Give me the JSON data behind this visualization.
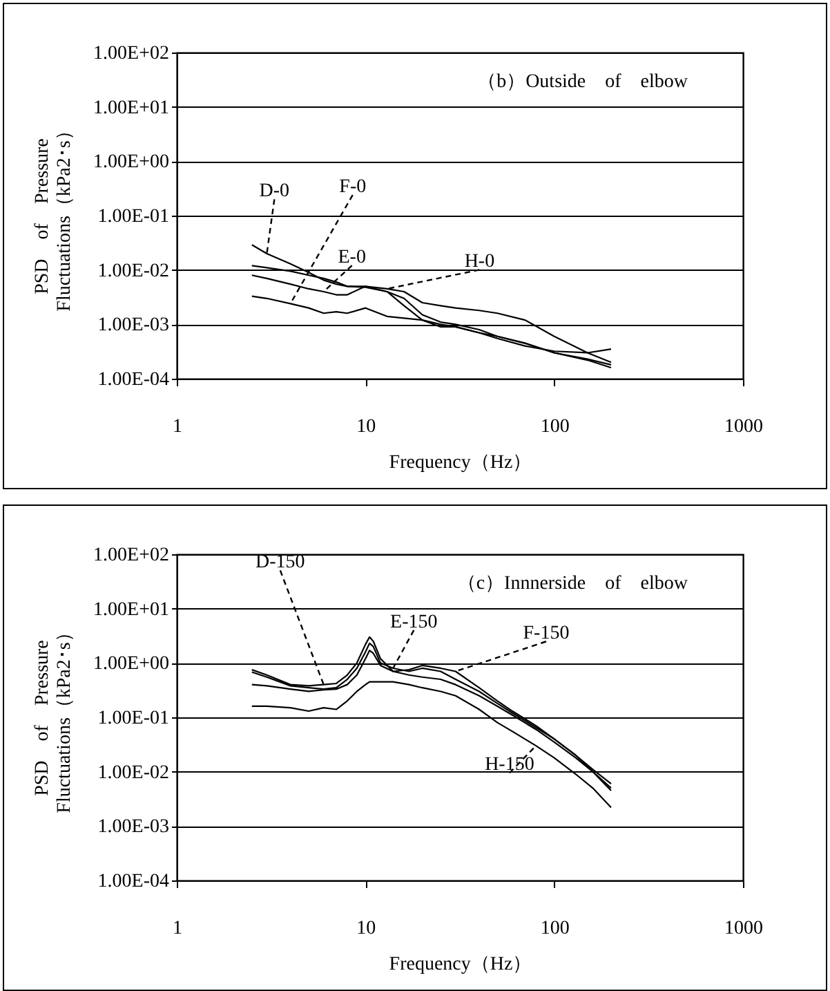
{
  "chart_data": [
    {
      "type": "line",
      "title": "（b）Outside　of　elbow",
      "xlabel": "Frequency（Hz）",
      "ylabel": "PSD　of　Pressure\nFluctuations（kPa2･s）",
      "log": "xy",
      "grid": "y",
      "legend": false,
      "x": [
        2.5,
        3,
        4,
        5,
        6,
        7,
        8,
        10,
        13,
        16,
        20,
        25,
        30,
        40,
        50,
        70,
        100,
        150,
        200
      ],
      "series": [
        {
          "name": "D-0",
          "color": "#000000",
          "values": [
            0.029,
            0.02,
            0.013,
            0.009,
            0.0065,
            0.0055,
            0.005,
            0.0048,
            0.004,
            0.003,
            0.0015,
            0.0011,
            0.001,
            0.0008,
            0.0006,
            0.00045,
            0.0003,
            0.00023,
            0.00018
          ]
        },
        {
          "name": "E-0",
          "color": "#000000",
          "values": [
            0.008,
            0.007,
            0.0055,
            0.0045,
            0.004,
            0.0035,
            0.0035,
            0.005,
            0.004,
            0.0022,
            0.0012,
            0.001,
            0.0009,
            0.0007,
            0.00055,
            0.0004,
            0.00032,
            0.0003,
            0.00035
          ]
        },
        {
          "name": "F-0",
          "color": "#000000",
          "values": [
            0.0033,
            0.003,
            0.0024,
            0.002,
            0.0016,
            0.0017,
            0.0016,
            0.002,
            0.0014,
            0.0013,
            0.0012,
            0.0009,
            0.0009,
            0.0007,
            0.0006,
            0.00045,
            0.0003,
            0.00022,
            0.00016
          ]
        },
        {
          "name": "H-0",
          "color": "#000000",
          "values": [
            0.012,
            0.011,
            0.0095,
            0.008,
            0.007,
            0.006,
            0.005,
            0.005,
            0.0045,
            0.004,
            0.0025,
            0.0022,
            0.002,
            0.0018,
            0.0016,
            0.0012,
            0.0006,
            0.0003,
            0.0002
          ]
        }
      ],
      "xlim": [
        1,
        1000
      ],
      "xticks": [
        1,
        10,
        100,
        1000
      ],
      "ylim": [
        0.0001,
        100
      ],
      "yticks": [
        {
          "value": 0.0001,
          "label": "1.00E-04"
        },
        {
          "value": 0.001,
          "label": "1.00E-03"
        },
        {
          "value": 0.01,
          "label": "1.00E-02"
        },
        {
          "value": 0.1,
          "label": "1.00E-01"
        },
        {
          "value": 1,
          "label": "1.00E+00"
        },
        {
          "value": 10,
          "label": "1.00E+01"
        },
        {
          "value": 100,
          "label": "1.00E+02"
        }
      ]
    },
    {
      "type": "line",
      "title": "（c）Innnerside　of　elbow",
      "xlabel": "Frequency（Hz）",
      "ylabel": "PSD　of　Pressure\nFluctuations（kPa2･s）",
      "log": "xy",
      "grid": "y",
      "legend": false,
      "x": [
        2.5,
        3,
        4,
        5,
        6,
        7,
        8,
        9,
        10,
        10.5,
        11,
        12,
        14,
        17,
        20,
        25,
        30,
        40,
        50,
        60,
        80,
        100,
        130,
        160,
        200
      ],
      "series": [
        {
          "name": "D-150",
          "color": "#000000",
          "values": [
            0.75,
            0.6,
            0.4,
            0.38,
            0.4,
            0.42,
            0.6,
            1.0,
            2.2,
            3.0,
            2.5,
            1.2,
            0.7,
            0.6,
            0.55,
            0.5,
            0.4,
            0.25,
            0.16,
            0.11,
            0.06,
            0.035,
            0.018,
            0.01,
            0.005
          ]
        },
        {
          "name": "E-150",
          "color": "#000000",
          "values": [
            0.68,
            0.55,
            0.38,
            0.35,
            0.33,
            0.35,
            0.5,
            0.8,
            1.6,
            2.3,
            2.0,
            1.0,
            0.8,
            0.7,
            0.8,
            0.7,
            0.5,
            0.3,
            0.18,
            0.12,
            0.065,
            0.04,
            0.02,
            0.011,
            0.006
          ]
        },
        {
          "name": "F-150",
          "color": "#000000",
          "values": [
            0.4,
            0.38,
            0.33,
            0.3,
            0.32,
            0.33,
            0.4,
            0.6,
            1.2,
            1.7,
            1.5,
            0.9,
            0.7,
            0.75,
            0.9,
            0.8,
            0.7,
            0.35,
            0.2,
            0.13,
            0.07,
            0.04,
            0.02,
            0.01,
            0.0045
          ]
        },
        {
          "name": "H-150",
          "color": "#000000",
          "values": [
            0.16,
            0.16,
            0.15,
            0.13,
            0.15,
            0.14,
            0.2,
            0.3,
            0.4,
            0.45,
            0.45,
            0.45,
            0.45,
            0.4,
            0.35,
            0.3,
            0.25,
            0.14,
            0.08,
            0.055,
            0.03,
            0.018,
            0.009,
            0.005,
            0.0022
          ]
        }
      ],
      "xlim": [
        1,
        1000
      ],
      "xticks": [
        1,
        10,
        100,
        1000
      ],
      "ylim": [
        0.0001,
        100
      ],
      "yticks": [
        {
          "value": 0.0001,
          "label": "1.00E-04"
        },
        {
          "value": 0.001,
          "label": "1.00E-03"
        },
        {
          "value": 0.01,
          "label": "1.00E-02"
        },
        {
          "value": 0.1,
          "label": "1.00E-01"
        },
        {
          "value": 1,
          "label": "1.00E+00"
        },
        {
          "value": 10,
          "label": "1.00E+01"
        },
        {
          "value": 100,
          "label": "1.00E+02"
        }
      ]
    }
  ]
}
